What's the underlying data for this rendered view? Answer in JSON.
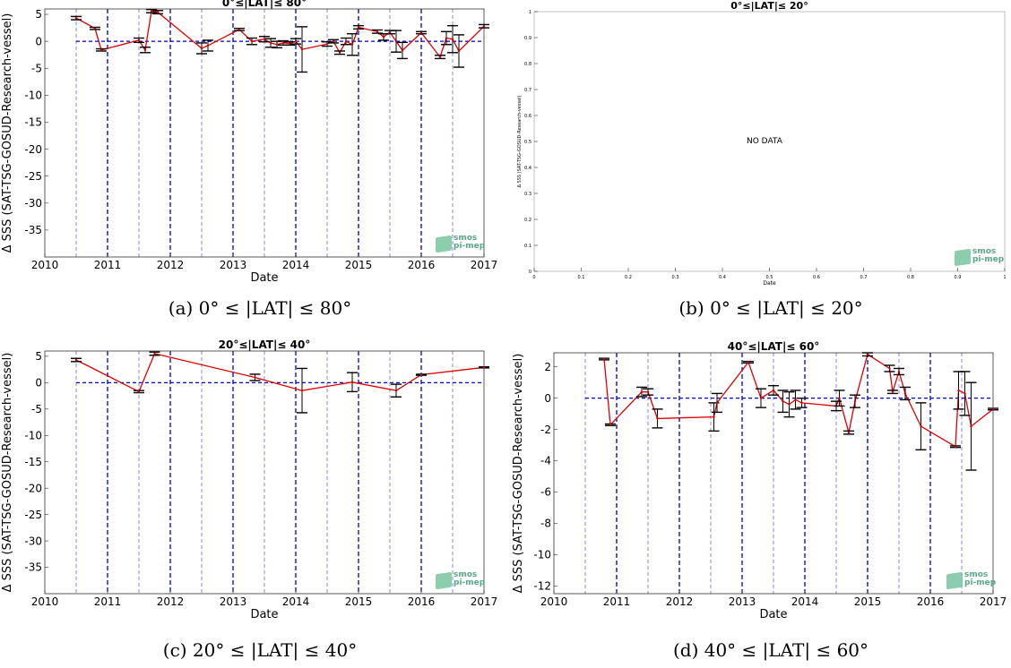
{
  "captions": {
    "a": "(a) 0° ≤ |LAT| ≤ 80°",
    "b": "(b) 0° ≤ |LAT| ≤ 20°",
    "c": "(c) 20° ≤ |LAT| ≤ 40°",
    "d": "(d) 40° ≤ |LAT| ≤ 60°"
  },
  "logo": {
    "line1": "smos",
    "line2": "pi-mep"
  },
  "no_data_text": "NO DATA",
  "colors": {
    "series": "#dd0000",
    "zero_line": "#0000cc",
    "year_grid": "#0000cc",
    "half_grid": "#6a6ad6",
    "errorbar": "#000000",
    "logo": "#5aa888"
  },
  "chart_data": [
    {
      "type": "line",
      "title": "0°≤|LAT|≤ 80°",
      "xlabel": "Date",
      "ylabel": "Δ SSS (SAT-TSG-GOSUD-Research-vessel)",
      "xlim": [
        2010,
        2017
      ],
      "ylim": [
        -40,
        6
      ],
      "xticks": [
        2010,
        2011,
        2012,
        2013,
        2014,
        2015,
        2016,
        2017
      ],
      "yticks": [
        5,
        0,
        -5,
        -10,
        -15,
        -20,
        -25,
        -30,
        -35
      ],
      "series": [
        {
          "x": [
            2010.5,
            2010.8,
            2010.9,
            2011.5,
            2011.6,
            2011.7,
            2011.8,
            2012.5,
            2012.6,
            2013.1,
            2013.3,
            2013.5,
            2013.6,
            2013.7,
            2013.8,
            2013.9,
            2014.0,
            2014.1,
            2014.5,
            2014.6,
            2014.7,
            2014.8,
            2014.9,
            2015.0,
            2015.3,
            2015.4,
            2015.5,
            2015.6,
            2015.7,
            2016.0,
            2016.3,
            2016.4,
            2016.5,
            2016.6,
            2017.0
          ],
          "y": [
            4.3,
            2.4,
            -1.6,
            0.2,
            -1.6,
            5.6,
            5.4,
            -1.3,
            -0.8,
            2.2,
            0.0,
            0.4,
            -0.3,
            -0.6,
            -0.3,
            -0.4,
            0.0,
            -1.5,
            -0.5,
            0.0,
            -2.1,
            0.0,
            -0.6,
            2.6,
            1.8,
            0.8,
            1.7,
            0.0,
            -1.7,
            1.6,
            -2.9,
            0.6,
            0.4,
            -1.8,
            2.8
          ],
          "err": [
            0.3,
            0.2,
            0.2,
            0.4,
            0.5,
            0.3,
            0.3,
            1.0,
            1.0,
            0.2,
            0.6,
            0.5,
            0.8,
            0.6,
            0.4,
            0.3,
            0.5,
            4.2,
            0.4,
            0.3,
            0.3,
            0.6,
            2.0,
            0.3,
            0.3,
            0.6,
            0.3,
            2.0,
            1.5,
            0.2,
            0.3,
            1.2,
            2.5,
            3.0,
            0.3
          ]
        }
      ]
    },
    {
      "type": "line",
      "title": "0°≤|LAT|≤ 20°",
      "xlabel": "Date",
      "ylabel": "Δ SSS (SAT-TSG-GOSUD-Research-vessel)",
      "xlim": [
        0,
        1
      ],
      "ylim": [
        0,
        1
      ],
      "xticks": [
        0,
        0.1,
        0.2,
        0.3,
        0.4,
        0.5,
        0.6,
        0.7,
        0.8,
        0.9,
        1
      ],
      "yticks": [
        0,
        0.1,
        0.2,
        0.3,
        0.4,
        0.5,
        0.6,
        0.7,
        0.8,
        0.9,
        1
      ],
      "series": []
    },
    {
      "type": "line",
      "title": "20°≤|LAT|≤ 40°",
      "xlabel": "Date",
      "ylabel": "Δ SSS (SAT-TSG-GOSUD-Research-vessel)",
      "xlim": [
        2010,
        2017
      ],
      "ylim": [
        -40,
        6
      ],
      "xticks": [
        2010,
        2011,
        2012,
        2013,
        2014,
        2015,
        2016,
        2017
      ],
      "yticks": [
        5,
        0,
        -5,
        -10,
        -15,
        -20,
        -25,
        -30,
        -35
      ],
      "series": [
        {
          "x": [
            2010.5,
            2011.5,
            2011.75,
            2013.35,
            2014.1,
            2014.9,
            2015.6,
            2016.0,
            2017.0
          ],
          "y": [
            4.3,
            -1.7,
            5.5,
            1.0,
            -1.5,
            0.1,
            -1.5,
            1.5,
            2.9
          ],
          "err": [
            0.3,
            0.2,
            0.3,
            0.6,
            4.2,
            1.8,
            1.2,
            0.1,
            0.1
          ]
        }
      ]
    },
    {
      "type": "line",
      "title": "40°≤|LAT|≤ 60°",
      "xlabel": "Date",
      "ylabel": "Δ SSS (SAT-TSG-GOSUD-Research-vessel)",
      "xlim": [
        2010,
        2017
      ],
      "ylim": [
        -12.5,
        2.9
      ],
      "xticks": [
        2010,
        2011,
        2012,
        2013,
        2014,
        2015,
        2016,
        2017
      ],
      "yticks": [
        2,
        0,
        -2,
        -4,
        -6,
        -8,
        -10,
        -12
      ],
      "series": [
        {
          "x": [
            2010.8,
            2010.9,
            2011.4,
            2011.5,
            2011.65,
            2012.55,
            2012.6,
            2013.1,
            2013.3,
            2013.5,
            2013.65,
            2013.75,
            2013.85,
            2013.95,
            2014.5,
            2014.55,
            2014.7,
            2014.8,
            2015.0,
            2015.35,
            2015.4,
            2015.5,
            2015.6,
            2015.85,
            2016.4,
            2016.45,
            2016.55,
            2016.65,
            2017.0
          ],
          "y": [
            2.5,
            -1.7,
            0.4,
            0.4,
            -1.3,
            -1.2,
            -0.3,
            2.3,
            0.0,
            0.5,
            -0.2,
            -0.4,
            -0.1,
            -0.3,
            -0.5,
            0.0,
            -2.2,
            -0.2,
            2.8,
            1.9,
            0.4,
            1.7,
            0.3,
            -1.8,
            -3.1,
            0.5,
            0.3,
            -1.8,
            -0.7
          ],
          "err": [
            0.05,
            0.05,
            0.3,
            0.2,
            0.6,
            0.9,
            0.6,
            0.05,
            0.6,
            0.3,
            0.7,
            0.8,
            0.6,
            0.3,
            0.3,
            0.5,
            0.1,
            0.4,
            0.1,
            0.2,
            0.1,
            0.2,
            0.4,
            1.5,
            0.05,
            1.2,
            1.4,
            2.8,
            0.05
          ]
        }
      ]
    }
  ]
}
